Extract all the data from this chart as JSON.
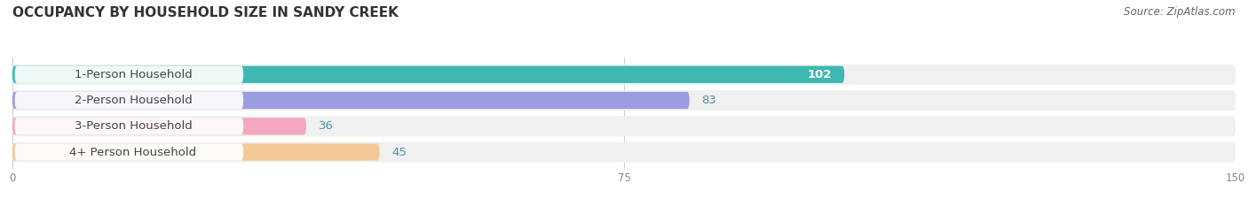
{
  "title": "OCCUPANCY BY HOUSEHOLD SIZE IN SANDY CREEK",
  "source": "Source: ZipAtlas.com",
  "categories": [
    "1-Person Household",
    "2-Person Household",
    "3-Person Household",
    "4+ Person Household"
  ],
  "values": [
    102,
    83,
    36,
    45
  ],
  "bar_colors": [
    "#3db8b2",
    "#9b9de0",
    "#f4a8c0",
    "#f5c897"
  ],
  "xlim": [
    0,
    150
  ],
  "xticks": [
    0,
    75,
    150
  ],
  "background_color": "#ffffff",
  "row_bg_color": "#f0f0f0",
  "title_fontsize": 11,
  "label_fontsize": 9.5,
  "value_fontsize": 9.5,
  "source_fontsize": 8.5,
  "value_in_bar_threshold": 90
}
